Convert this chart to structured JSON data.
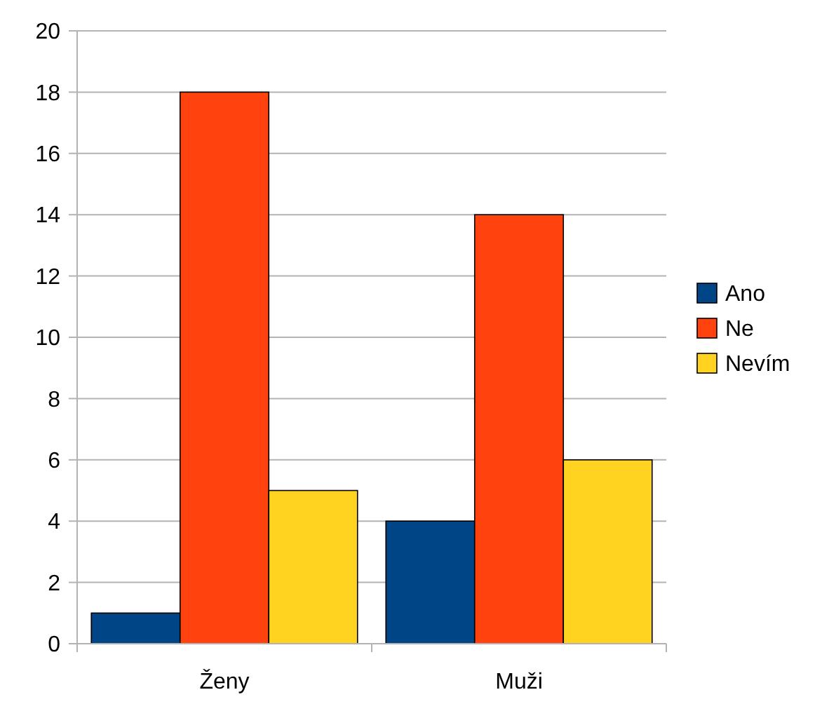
{
  "chart_data": {
    "type": "bar",
    "categories": [
      "Ženy",
      "Muži"
    ],
    "series": [
      {
        "name": "Ano",
        "color": "#004586",
        "values": [
          1,
          4
        ]
      },
      {
        "name": "Ne",
        "color": "#ff420e",
        "values": [
          18,
          14
        ]
      },
      {
        "name": "Nevím",
        "color": "#ffd320",
        "values": [
          5,
          6
        ]
      }
    ],
    "ylim": [
      0,
      20
    ],
    "yticks": [
      0,
      2,
      4,
      6,
      8,
      10,
      12,
      14,
      16,
      18,
      20
    ],
    "grid": "y",
    "legend": "right"
  }
}
